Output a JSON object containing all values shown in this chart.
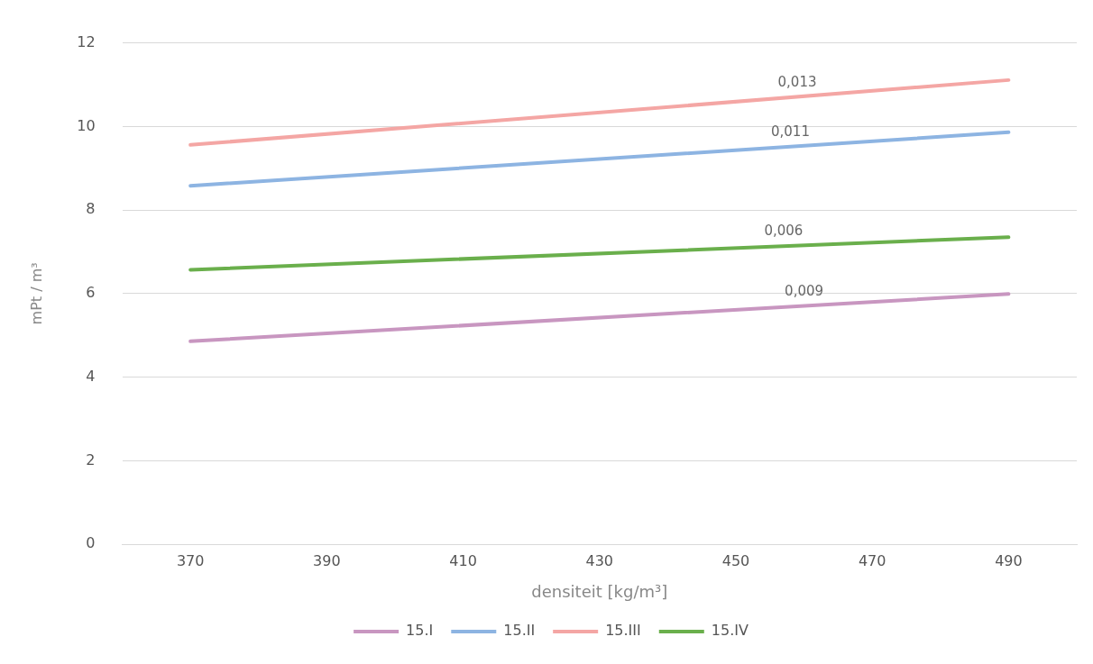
{
  "chart_data": {
    "type": "line",
    "xlabel": "densiteit [kg/m³]",
    "ylabel": "mPt / m³",
    "xlim": [
      360,
      500
    ],
    "xticks": [
      370,
      390,
      410,
      430,
      450,
      470,
      490
    ],
    "ylim": [
      0,
      12
    ],
    "yticks": [
      0,
      2,
      4,
      6,
      8,
      10,
      12
    ],
    "x": [
      370,
      490
    ],
    "grid": "y",
    "legend": "bottom",
    "marker": "none",
    "line_style": "solid",
    "series": [
      {
        "name": "15.I",
        "color": "#c896c0",
        "values": [
          4.86,
          5.99
        ]
      },
      {
        "name": "15.II",
        "color": "#8db4e2",
        "values": [
          8.58,
          9.86
        ]
      },
      {
        "name": "15.III",
        "color": "#f4a6a4",
        "values": [
          9.56,
          11.11
        ]
      },
      {
        "name": "15.IV",
        "color": "#6aaf4c",
        "values": [
          6.57,
          7.35
        ]
      }
    ],
    "annotations": [
      {
        "text": "0,013",
        "x": 459,
        "y": 10.71
      },
      {
        "text": "0,011",
        "x": 458,
        "y": 9.52
      },
      {
        "text": "0,006",
        "x": 457,
        "y": 7.14
      },
      {
        "text": "0,009",
        "x": 460,
        "y": 5.7
      }
    ]
  }
}
